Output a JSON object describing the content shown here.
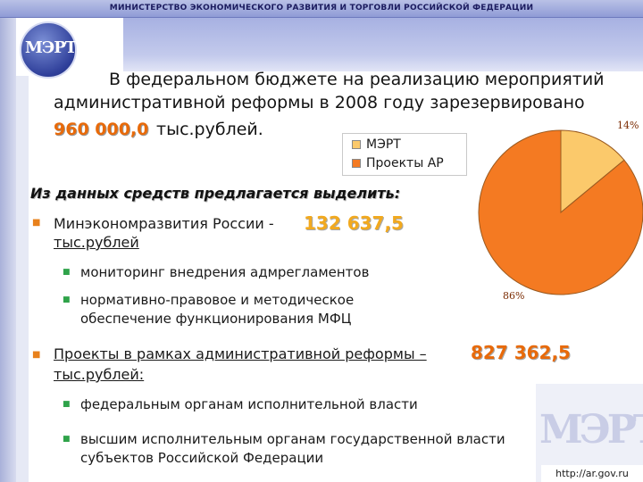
{
  "header": {
    "ministry": "МИНИСТЕРСТВО ЭКОНОМИЧЕСКОГО РАЗВИТИЯ И ТОРГОВЛИ РОССИЙСКОЙ ФЕДЕРАЦИИ",
    "logo_text": "МЭРТ"
  },
  "intro": {
    "line1": "В федеральном бюджете на реализацию мероприятий",
    "line2": "административной реформы в 2008 году зарезервировано",
    "amount": "960 000,0",
    "amount_unit": "тыс.рублей."
  },
  "legend": {
    "items": [
      {
        "label": "МЭРТ",
        "color": "#fbc96b"
      },
      {
        "label": "Проекты АР",
        "color": "#f47a22"
      }
    ]
  },
  "chart_data": {
    "type": "pie",
    "categories": [
      "МЭРТ",
      "Проекты АР"
    ],
    "values": [
      14,
      86
    ],
    "data_labels": [
      "14%",
      "86%"
    ],
    "colors": [
      "#fbc96b",
      "#f47a22"
    ],
    "legend_position": "left"
  },
  "body": {
    "subhead": "Из данных средств предлагается выделить:",
    "bullet1": {
      "text": "Минэкономразвития России -",
      "amount": "132 637,5",
      "unit": "тыс.рублей",
      "subitems": [
        "мониторинг внедрения адмрегламентов",
        "нормативно-правовое и методическое",
        "обеспечение функционирования МФЦ"
      ]
    },
    "bullet2": {
      "text": "Проекты в рамках административной реформы –",
      "amount": "827 362,5",
      "unit": "тыс.рублей:",
      "subitems": [
        "федеральным органам исполнительной власти",
        "высшим исполнительным органам государственной власти",
        "субъектов Российской Федерации"
      ]
    }
  },
  "footer": {
    "url": "http://ar.gov.ru",
    "watermark": "МЭРТ"
  }
}
